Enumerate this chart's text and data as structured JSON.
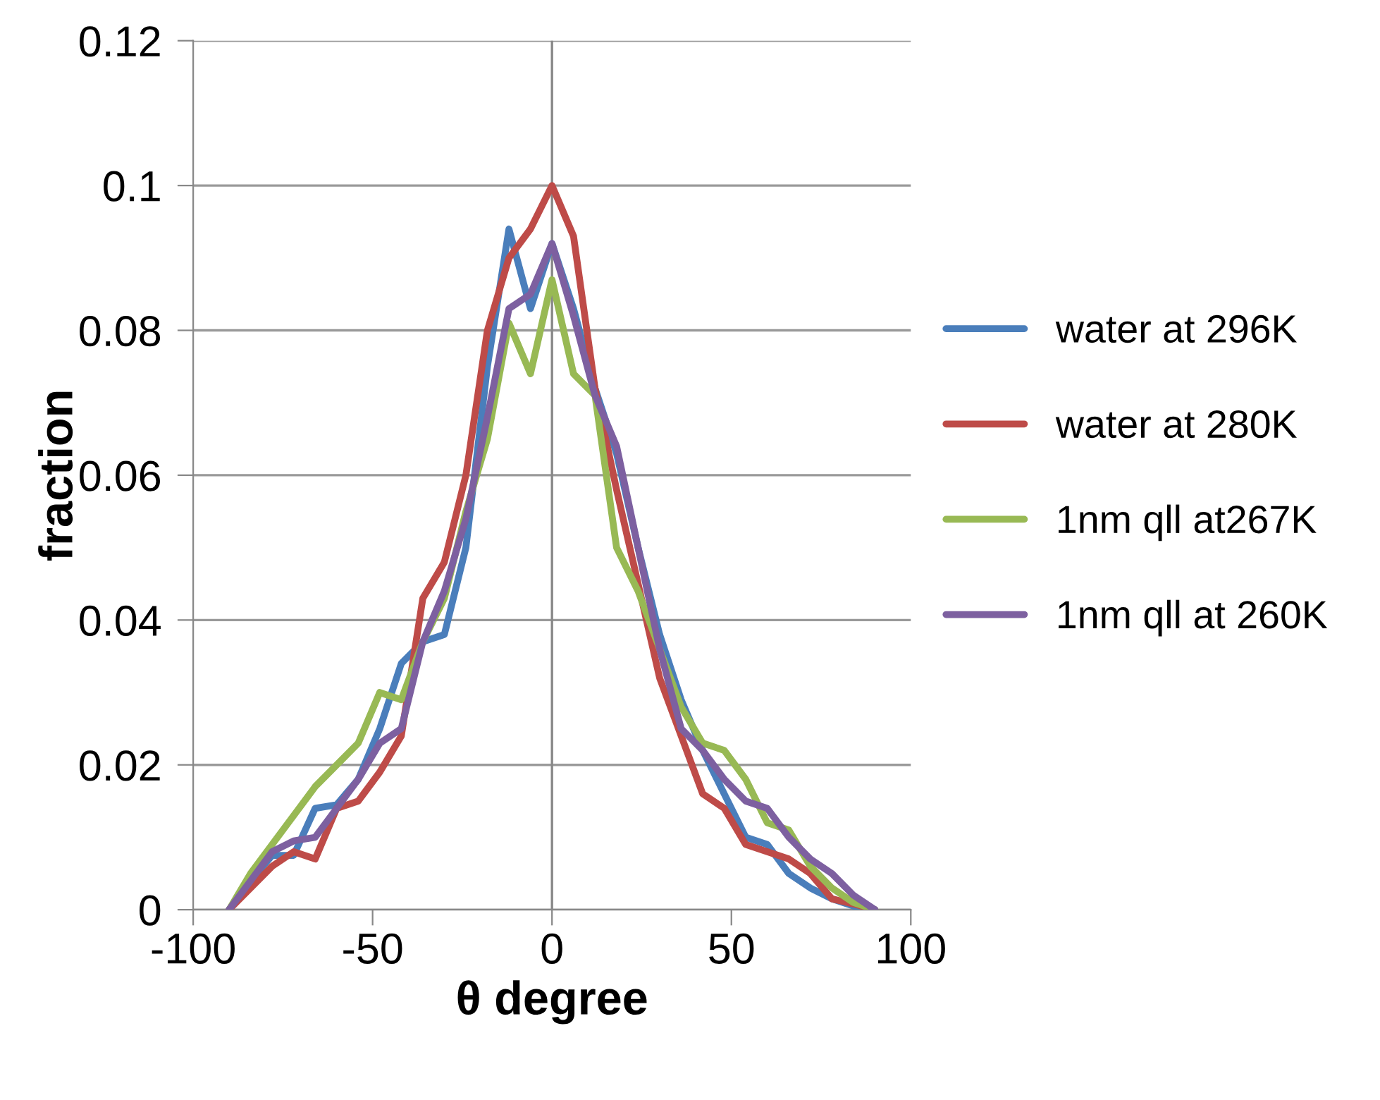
{
  "chart_data": {
    "type": "line",
    "xlabel": "θ degree",
    "ylabel": "fraction",
    "x": [
      -90,
      -84,
      -78,
      -72,
      -66,
      -60,
      -54,
      -48,
      -42,
      -36,
      -30,
      -24,
      -18,
      -12,
      -6,
      0,
      6,
      12,
      18,
      24,
      30,
      36,
      42,
      48,
      54,
      60,
      66,
      72,
      78,
      84,
      90
    ],
    "series": [
      {
        "name": "water at 296K",
        "color": "#4a7ebb",
        "values": [
          0,
          0.004,
          0.0075,
          0.0075,
          0.014,
          0.0145,
          0.018,
          0.025,
          0.034,
          0.037,
          0.038,
          0.05,
          0.075,
          0.094,
          0.083,
          0.092,
          0.083,
          0.072,
          0.063,
          0.05,
          0.038,
          0.029,
          0.022,
          0.016,
          0.01,
          0.009,
          0.005,
          0.003,
          0.0015,
          0.0005,
          0
        ]
      },
      {
        "name": "water at 280K",
        "color": "#be4b48",
        "values": [
          0,
          0.003,
          0.006,
          0.008,
          0.007,
          0.014,
          0.015,
          0.019,
          0.024,
          0.043,
          0.048,
          0.06,
          0.08,
          0.09,
          0.094,
          0.1,
          0.093,
          0.072,
          0.058,
          0.045,
          0.032,
          0.024,
          0.016,
          0.014,
          0.009,
          0.008,
          0.007,
          0.005,
          0.0015,
          0.0008,
          0
        ]
      },
      {
        "name": "1nm qll at267K",
        "color": "#98b954",
        "values": [
          0,
          0.005,
          0.009,
          0.013,
          0.017,
          0.02,
          0.023,
          0.03,
          0.029,
          0.037,
          0.043,
          0.055,
          0.065,
          0.081,
          0.074,
          0.087,
          0.074,
          0.071,
          0.05,
          0.044,
          0.036,
          0.028,
          0.023,
          0.022,
          0.018,
          0.012,
          0.011,
          0.006,
          0.003,
          0.001,
          0
        ]
      },
      {
        "name": "1nm qll at 260K",
        "color": "#7d60a0",
        "values": [
          0,
          0.004,
          0.008,
          0.0095,
          0.01,
          0.014,
          0.018,
          0.023,
          0.025,
          0.037,
          0.044,
          0.054,
          0.068,
          0.083,
          0.085,
          0.092,
          0.082,
          0.071,
          0.064,
          0.05,
          0.036,
          0.025,
          0.022,
          0.018,
          0.015,
          0.014,
          0.01,
          0.007,
          0.005,
          0.002,
          0
        ]
      }
    ],
    "xlim": [
      -100,
      100
    ],
    "xticks": [
      -100,
      -50,
      0,
      50,
      100
    ],
    "ylim": [
      0,
      0.12
    ],
    "yticks": [
      0,
      0.02,
      0.04,
      0.06,
      0.08,
      0.1,
      0.12
    ],
    "grid": "y",
    "legend": "right",
    "marker": "none",
    "line_style": "solid"
  }
}
